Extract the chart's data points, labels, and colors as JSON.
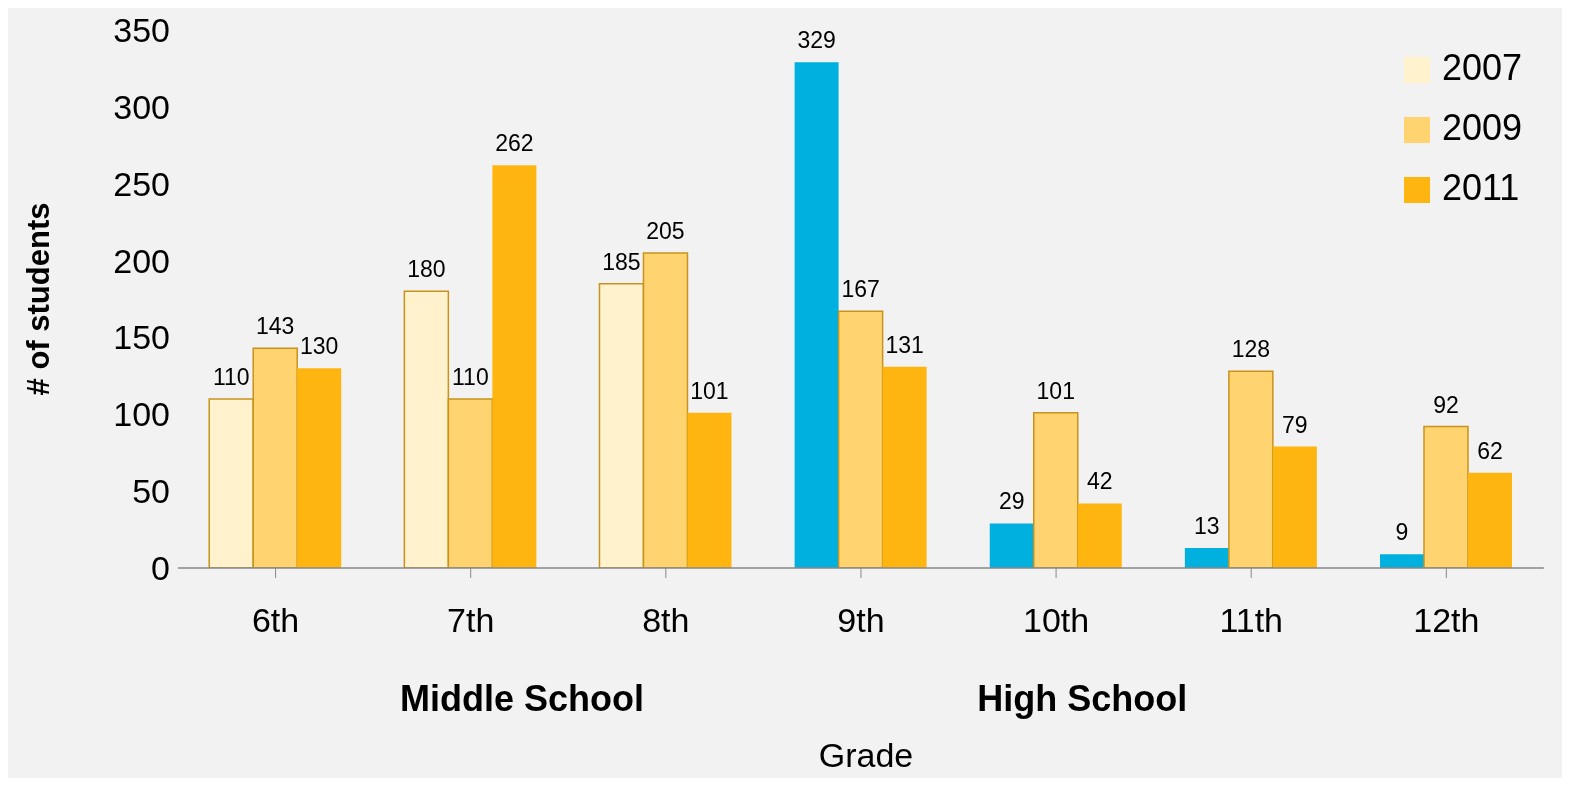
{
  "chart_data": {
    "type": "bar",
    "xlabel": "Grade",
    "ylabel": "# of students",
    "categories": [
      "6th",
      "7th",
      "8th",
      "9th",
      "10th",
      "11th",
      "12th"
    ],
    "series": [
      {
        "name": "2007",
        "color": "#fff2cc",
        "colors": [
          "#fff2cc",
          "#fff2cc",
          "#fff2cc",
          "#00b0de",
          "#00b0de",
          "#00b0de",
          "#00b0de"
        ],
        "values": [
          110,
          180,
          185,
          329,
          29,
          13,
          9
        ]
      },
      {
        "name": "2009",
        "color": "#ffd470",
        "values": [
          143,
          110,
          205,
          167,
          101,
          128,
          92
        ]
      },
      {
        "name": "2011",
        "color": "#ffb50f",
        "values": [
          130,
          262,
          101,
          131,
          42,
          79,
          62
        ]
      }
    ],
    "ylim": [
      0,
      350
    ],
    "yticks": [
      0,
      50,
      100,
      150,
      200,
      250,
      300,
      350
    ],
    "legend": "top right",
    "data_labels": true,
    "annotations": [
      "Middle School",
      "High School"
    ]
  }
}
